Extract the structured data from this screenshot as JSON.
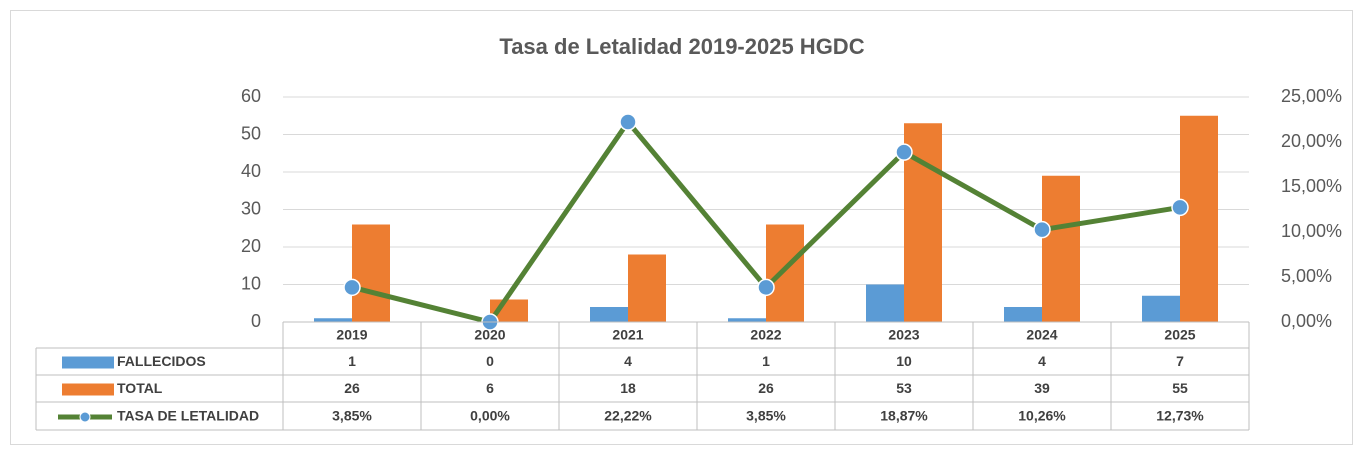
{
  "chart_data": {
    "type": "bar",
    "title": "Tasa de Letalidad 2019-2025 HGDC",
    "categories": [
      "2019",
      "2020",
      "2021",
      "2022",
      "2023",
      "2024",
      "2025"
    ],
    "series": [
      {
        "name": "FALLECIDOS",
        "color": "#5b9bd5",
        "values": [
          1,
          0,
          4,
          1,
          10,
          4,
          7
        ]
      },
      {
        "name": "TOTAL",
        "color": "#ed7d31",
        "values": [
          26,
          6,
          18,
          26,
          53,
          39,
          55
        ]
      },
      {
        "name": "TASA DE LETALIDAD",
        "color": "#548235",
        "type": "line",
        "axis": "y2",
        "values": [
          3.85,
          0,
          22.22,
          3.85,
          18.87,
          10.26,
          12.73
        ],
        "value_labels": [
          "3,85%",
          "0,00%",
          "22,22%",
          "3,85%",
          "18,87%",
          "10,26%",
          "12,73%"
        ]
      }
    ],
    "ylim": [
      0,
      60
    ],
    "yticks": [
      0,
      10,
      20,
      30,
      40,
      50,
      60
    ],
    "y2lim": [
      0,
      25
    ],
    "y2ticks": [
      {
        "value": 0,
        "label": "0,00%"
      },
      {
        "value": 5,
        "label": "5,00%"
      },
      {
        "value": 10,
        "label": "10,00%"
      },
      {
        "value": 15,
        "label": "15,00%"
      },
      {
        "value": 20,
        "label": "20,00%"
      },
      {
        "value": 25,
        "label": "25,00%"
      }
    ],
    "grid": true
  }
}
